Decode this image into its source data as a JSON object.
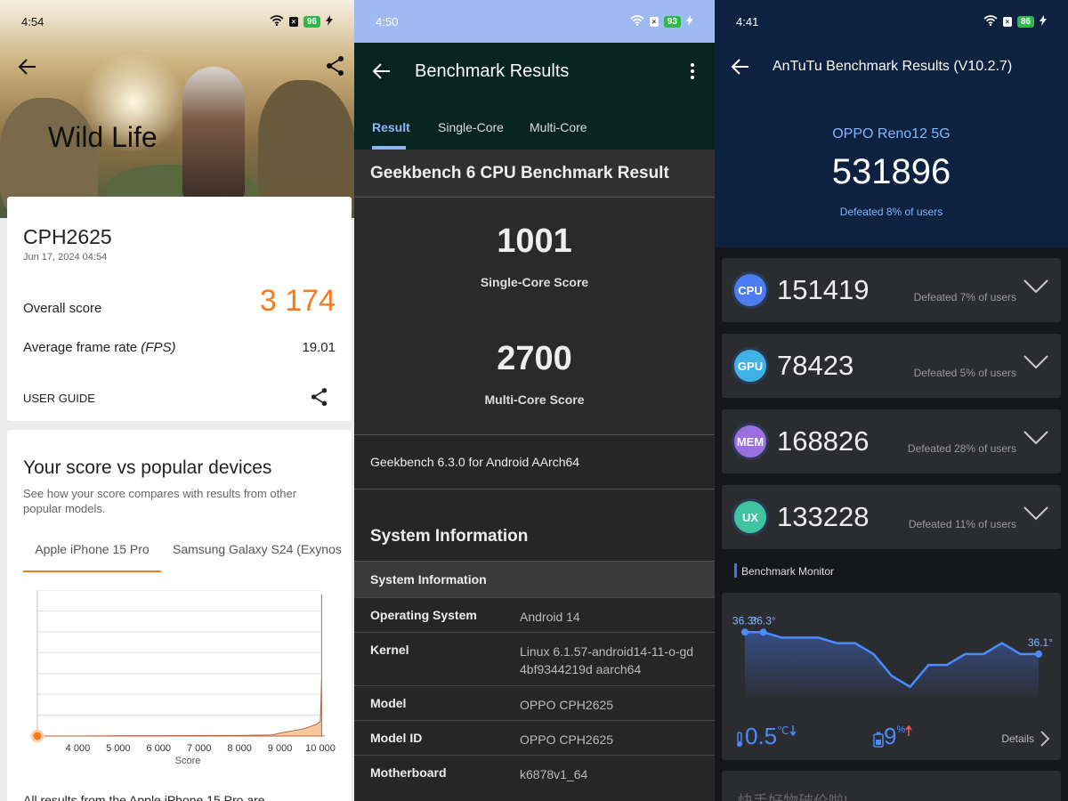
{
  "p1": {
    "status": {
      "time": "4:54",
      "battery": "96"
    },
    "hero_title": "Wild Life",
    "device": "CPH2625",
    "date": "Jun 17, 2024 04:54",
    "overall_label": "Overall score",
    "overall_value": "3 174",
    "fps_label": "Average frame rate",
    "fps_unit": "(FPS)",
    "fps_value": "19.01",
    "user_guide": "USER GUIDE",
    "compare_title": "Your score vs popular devices",
    "compare_desc": "See how your score compares with results from other popular models.",
    "tabs": [
      "Apple iPhone 15 Pro",
      "Samsung Galaxy S24 (Exynos"
    ],
    "footer_text": "All results from the Apple iPhone 15 Pro are",
    "colors": {
      "accent": "#f47b20"
    }
  },
  "chart_data": {
    "type": "area",
    "title": "",
    "xlabel": "Score",
    "ylabel": "",
    "xlim": [
      3000,
      10000
    ],
    "x_ticks": [
      "4 000",
      "5 000",
      "6 000",
      "7 000",
      "8 000",
      "9 000",
      "10 000"
    ],
    "series": [
      {
        "x": [
          3000,
          4000,
          5000,
          6000,
          7000,
          8000,
          8800,
          9000,
          9200,
          9400,
          9600,
          9800,
          9900,
          10000,
          10050,
          10080,
          10100
        ],
        "y": [
          0,
          0,
          0.2,
          0.2,
          0.3,
          0.4,
          0.8,
          2,
          3,
          4,
          5,
          7,
          8,
          10,
          40,
          97,
          0
        ]
      }
    ],
    "marker_score": 3174,
    "grid": true
  },
  "p2": {
    "status": {
      "time": "4:50",
      "battery": "93"
    },
    "title": "Benchmark Results",
    "tabs": [
      "Result",
      "Single-Core",
      "Multi-Core"
    ],
    "heading": "Geekbench 6 CPU Benchmark Result",
    "single_score": "1001",
    "single_label": "Single-Core Score",
    "multi_score": "2700",
    "multi_label": "Multi-Core Score",
    "version": "Geekbench 6.3.0 for Android AArch64",
    "sys_heading": "System Information",
    "sys_table_header": "System Information",
    "rows": [
      {
        "k": "Operating System",
        "v": "Android 14"
      },
      {
        "k": "Kernel",
        "v": "Linux 6.1.57-android14-11-o-gd4bf9344219d aarch64"
      },
      {
        "k": "Model",
        "v": "OPPO CPH2625"
      },
      {
        "k": "Model ID",
        "v": "OPPO CPH2625"
      },
      {
        "k": "Motherboard",
        "v": "k6878v1_64"
      }
    ]
  },
  "p3": {
    "status": {
      "time": "4:41",
      "battery": "86"
    },
    "title": "AnTuTu Benchmark Results (V10.2.7)",
    "device": "OPPO Reno12 5G",
    "total": "531896",
    "defeated": "Defeated 8% of users",
    "cats": [
      {
        "badge": "CPU",
        "score": "151419",
        "def": "Defeated 7% of users",
        "color": "#4a7ef0"
      },
      {
        "badge": "GPU",
        "score": "78423",
        "def": "Defeated 5% of users",
        "color": "#3fb3e6"
      },
      {
        "badge": "MEM",
        "score": "168826",
        "def": "Defeated 28% of users",
        "color": "#9b6fe0"
      },
      {
        "badge": "UX",
        "score": "133228",
        "def": "Defeated 11% of users",
        "color": "#3fc3a0"
      }
    ],
    "monitor_title": "Benchmark Monitor",
    "temp_labels": [
      "36.3°",
      "36.3°",
      "36.1°"
    ],
    "temp_delta": "0.5",
    "temp_unit": "℃",
    "battery_delta": "9",
    "battery_unit": "%",
    "details": "Details",
    "bottom_text": "快手好物破价啦!",
    "temp_series": [
      36.3,
      36.3,
      36.25,
      36.25,
      36.25,
      36.2,
      36.2,
      36.1,
      35.9,
      35.8,
      36.0,
      36.0,
      36.1,
      36.1,
      36.2,
      36.1,
      36.1
    ]
  }
}
